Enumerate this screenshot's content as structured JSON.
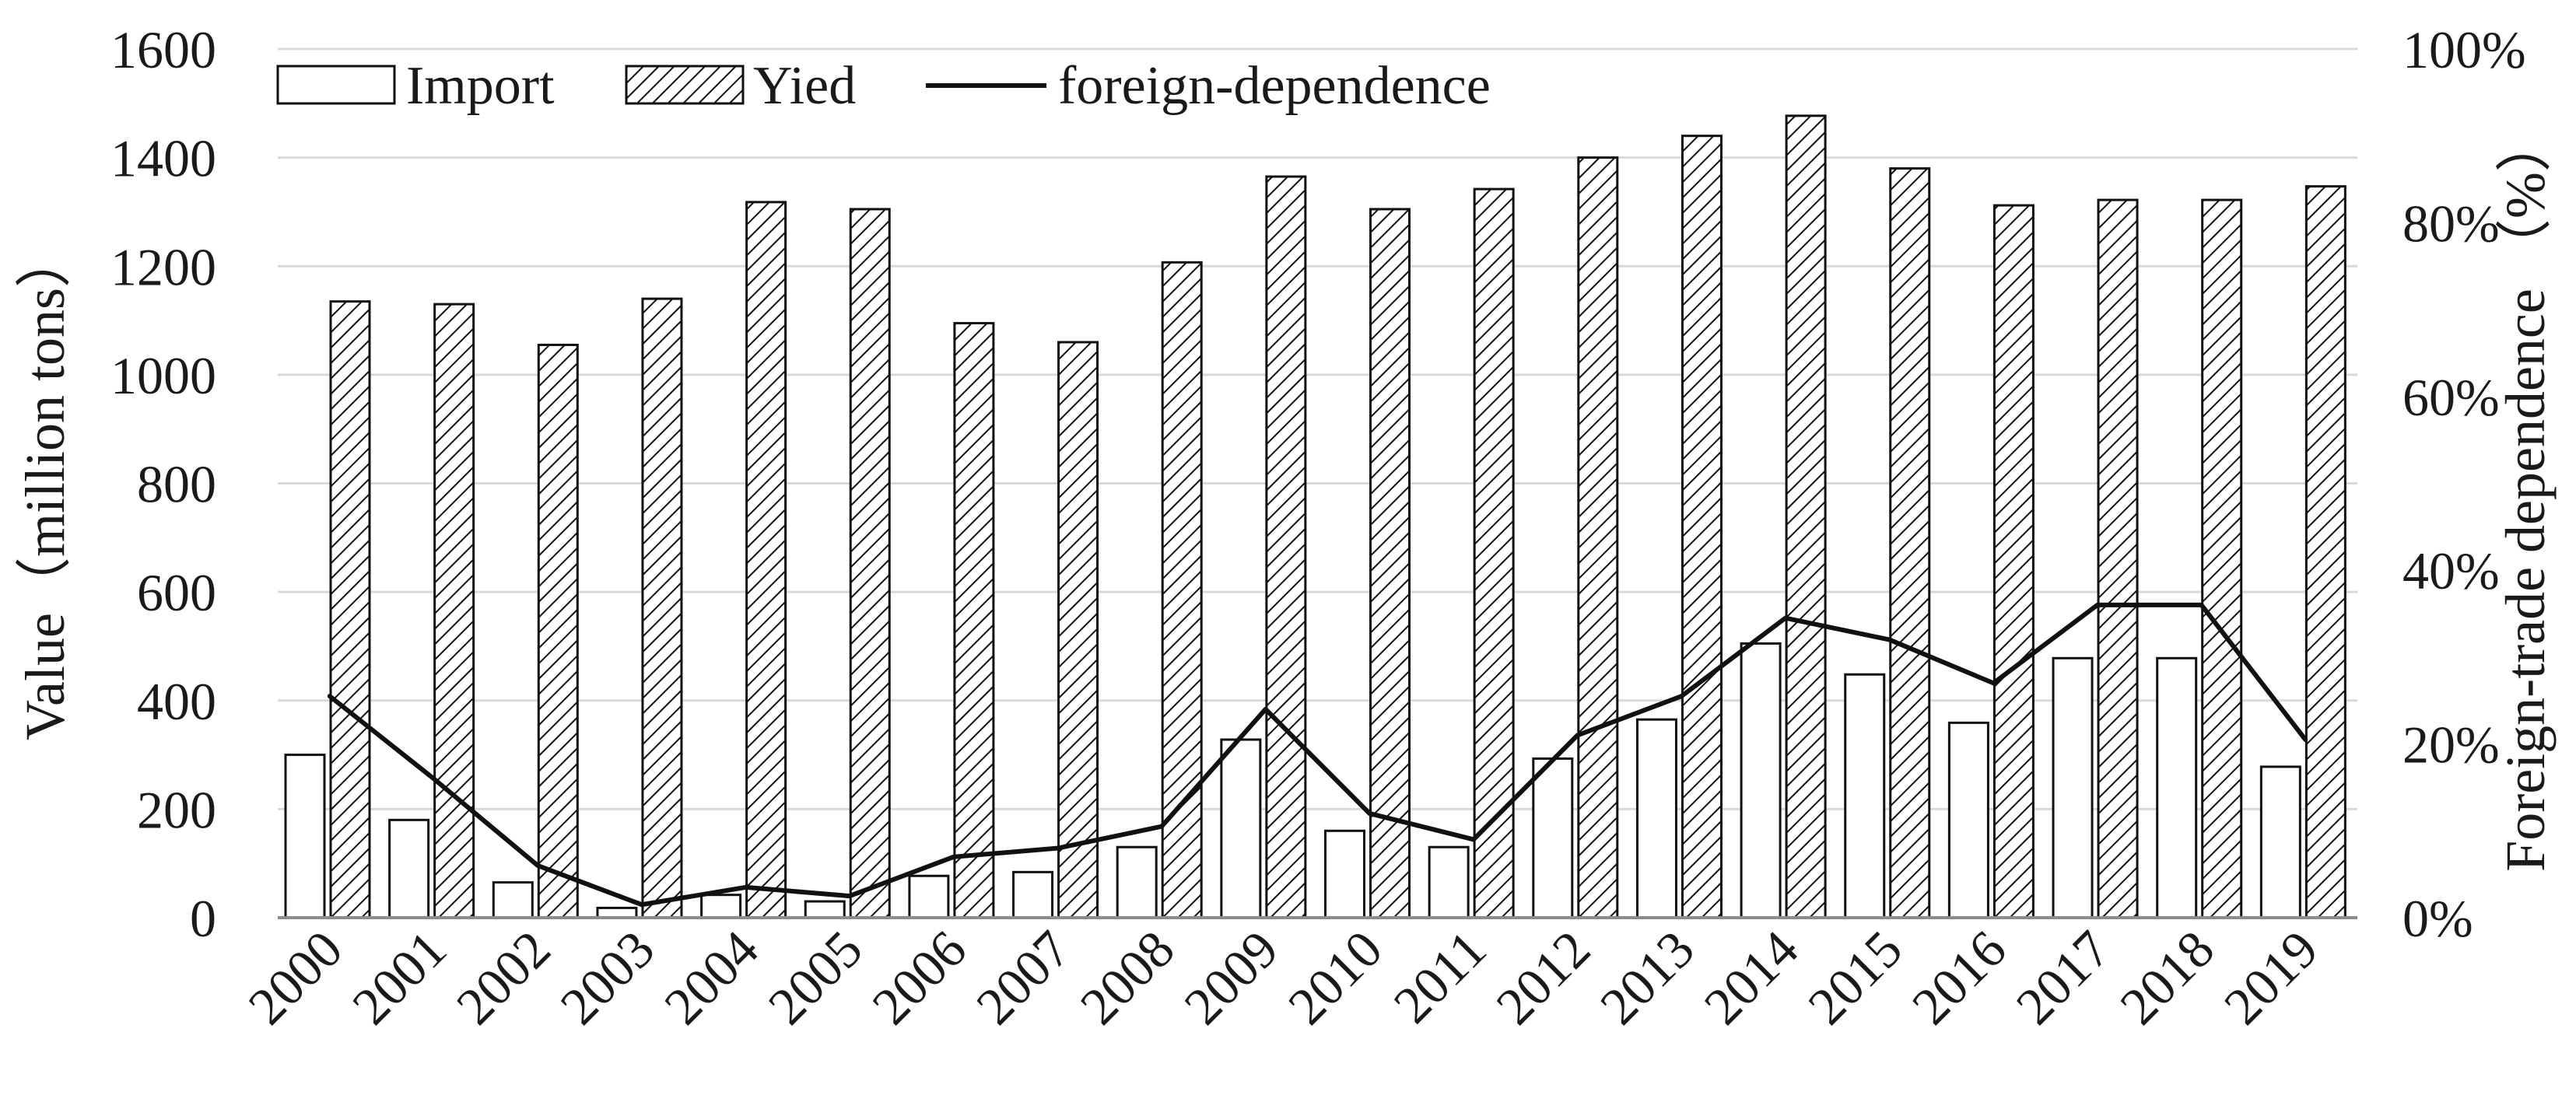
{
  "chart_data": {
    "type": "bar",
    "categories": [
      "2000",
      "2001",
      "2002",
      "2003",
      "2004",
      "2005",
      "2006",
      "2007",
      "2008",
      "2009",
      "2010",
      "2011",
      "2012",
      "2013",
      "2014",
      "2015",
      "2016",
      "2017",
      "2018",
      "2019"
    ],
    "series": [
      {
        "name": "Import",
        "kind": "bar",
        "axis": "left",
        "pattern": "none",
        "values": [
          300,
          180,
          65,
          18,
          42,
          30,
          77,
          84,
          130,
          328,
          160,
          130,
          293,
          365,
          505,
          448,
          359,
          478,
          478,
          278
        ]
      },
      {
        "name": "Yied",
        "kind": "bar",
        "axis": "left",
        "pattern": "diagonal-hatch",
        "values": [
          1135,
          1130,
          1055,
          1140,
          1318,
          1305,
          1095,
          1060,
          1207,
          1365,
          1305,
          1342,
          1400,
          1440,
          1477,
          1380,
          1312,
          1322,
          1322,
          1347
        ]
      },
      {
        "name": "foreign-dependence",
        "kind": "line",
        "axis": "right",
        "values": [
          25.5,
          16,
          6,
          1.5,
          3.5,
          2.5,
          7,
          8,
          10.5,
          24,
          12,
          9,
          21,
          25.5,
          34.5,
          32,
          27,
          36,
          36,
          20.5
        ]
      }
    ],
    "ylabel": "Value（million tons）",
    "y2label": "Foreign-trade dependence （%）",
    "ylim": [
      0,
      1600
    ],
    "y2lim": [
      0,
      100
    ],
    "yticks": [
      "0",
      "200",
      "400",
      "600",
      "800",
      "1000",
      "1200",
      "1400",
      "1600"
    ],
    "y2ticks": [
      "0%",
      "20%",
      "40%",
      "60%",
      "80%",
      "100%"
    ],
    "grid": true,
    "legend_position": "top-left"
  },
  "colors": {
    "line": "#111111",
    "bar_outline": "#111111",
    "bar_fill": "#ffffff",
    "gridline": "#d9d9d9",
    "axis": "#8c8c8c"
  }
}
